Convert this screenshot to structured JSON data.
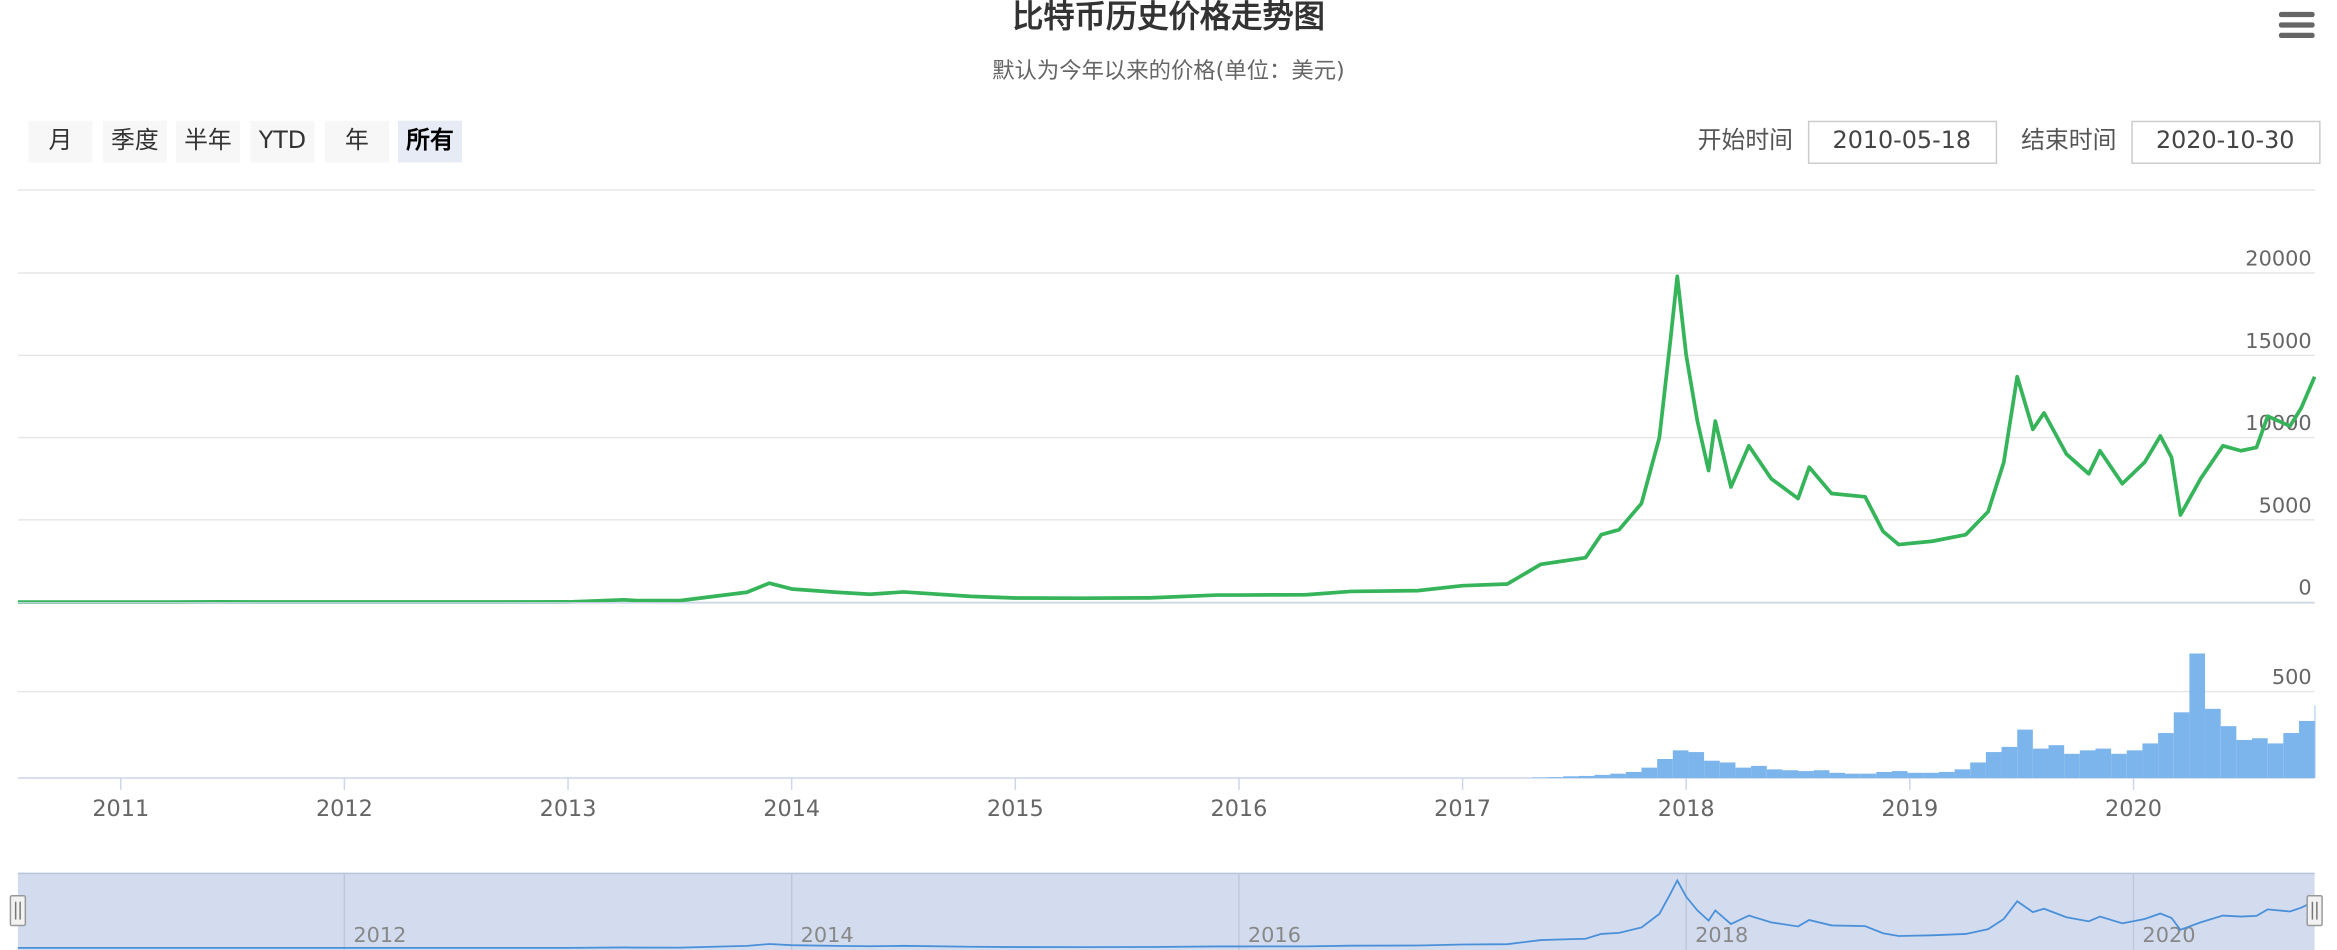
{
  "ui": {
    "buttons": [
      "月",
      "季度",
      "半年",
      "YTD",
      "年",
      "所有"
    ],
    "selected": 5,
    "start_label": "开始时间",
    "start": "2010-05-18",
    "end_label": "结束时间",
    "end": "2020-10-30"
  },
  "chart_data": [
    {
      "type": "line",
      "title": "比特币历史价格走势图",
      "subtitle": "默认为今年以来的价格(单位：美元)",
      "x": [
        2010.54,
        2010.8,
        2011.2,
        2011.45,
        2011.7,
        2012.0,
        2012.5,
        2013.0,
        2013.25,
        2013.3,
        2013.5,
        2013.8,
        2013.9,
        2014.0,
        2014.2,
        2014.35,
        2014.5,
        2014.8,
        2015.0,
        2015.3,
        2015.6,
        2015.9,
        2016.0,
        2016.3,
        2016.5,
        2016.8,
        2017.0,
        2017.2,
        2017.35,
        2017.45,
        2017.55,
        2017.62,
        2017.7,
        2017.8,
        2017.88,
        2017.93,
        2017.96,
        2018.0,
        2018.05,
        2018.1,
        2018.13,
        2018.2,
        2018.28,
        2018.38,
        2018.5,
        2018.55,
        2018.65,
        2018.8,
        2018.88,
        2018.95,
        2019.1,
        2019.25,
        2019.35,
        2019.42,
        2019.48,
        2019.55,
        2019.6,
        2019.7,
        2019.8,
        2019.85,
        2019.95,
        2020.05,
        2020.12,
        2020.17,
        2020.21,
        2020.3,
        2020.4,
        2020.48,
        2020.55,
        2020.6,
        2020.7,
        2020.75,
        2020.81
      ],
      "series": [
        {
          "color": "#35b45a",
          "values": [
            0,
            1,
            1,
            15,
            5,
            5,
            7,
            13,
            140,
            100,
            90,
            600,
            1150,
            800,
            600,
            480,
            620,
            350,
            250,
            240,
            260,
            430,
            430,
            450,
            650,
            700,
            1000,
            1100,
            2300,
            2500,
            2700,
            4100,
            4400,
            6000,
            10000,
            16000,
            19800,
            15000,
            11000,
            8000,
            11000,
            7000,
            9500,
            7500,
            6300,
            8200,
            6600,
            6400,
            4300,
            3500,
            3700,
            4100,
            5500,
            8500,
            13700,
            10500,
            11500,
            9000,
            7800,
            9200,
            7200,
            8500,
            10100,
            8800,
            5300,
            7500,
            9500,
            9200,
            9400,
            11300,
            10700,
            11800,
            13700
          ]
        }
      ],
      "xlim": [
        2010.54,
        2020.81
      ],
      "ylim": [
        0,
        25000
      ],
      "yticks": [
        0,
        5000,
        10000,
        15000,
        20000
      ],
      "navigator": {
        "xticks": [
          2012,
          2014,
          2016,
          2018,
          2020
        ],
        "ylim": [
          0,
          21000
        ],
        "color": "#4a90d9"
      }
    },
    {
      "type": "bar",
      "color": "#7cb5ec",
      "x": [
        2017.31,
        2017.38,
        2017.45,
        2017.52,
        2017.59,
        2017.66,
        2017.73,
        2017.8,
        2017.87,
        2017.94,
        2018.01,
        2018.08,
        2018.15,
        2018.22,
        2018.29,
        2018.36,
        2018.43,
        2018.5,
        2018.57,
        2018.64,
        2018.71,
        2018.78,
        2018.85,
        2018.92,
        2018.99,
        2019.06,
        2019.13,
        2019.2,
        2019.27,
        2019.34,
        2019.41,
        2019.48,
        2019.55,
        2019.62,
        2019.69,
        2019.76,
        2019.83,
        2019.9,
        2019.97,
        2020.04,
        2020.11,
        2020.18,
        2020.25,
        2020.32,
        2020.39,
        2020.46,
        2020.53,
        2020.6,
        2020.67,
        2020.74,
        2020.81
      ],
      "values": [
        3,
        5,
        10,
        12,
        18,
        25,
        35,
        60,
        110,
        160,
        150,
        100,
        90,
        60,
        70,
        50,
        45,
        40,
        45,
        30,
        25,
        25,
        35,
        40,
        30,
        30,
        35,
        50,
        90,
        150,
        180,
        280,
        170,
        190,
        140,
        160,
        170,
        140,
        160,
        200,
        260,
        380,
        720,
        400,
        300,
        220,
        230,
        200,
        260,
        330,
        420
      ],
      "xlim": [
        2010.54,
        2020.81
      ],
      "ylim": [
        0,
        1000
      ],
      "yticks": [
        0,
        500
      ],
      "xticks": [
        2011,
        2012,
        2013,
        2014,
        2015,
        2016,
        2017,
        2018,
        2019,
        2020
      ]
    }
  ]
}
